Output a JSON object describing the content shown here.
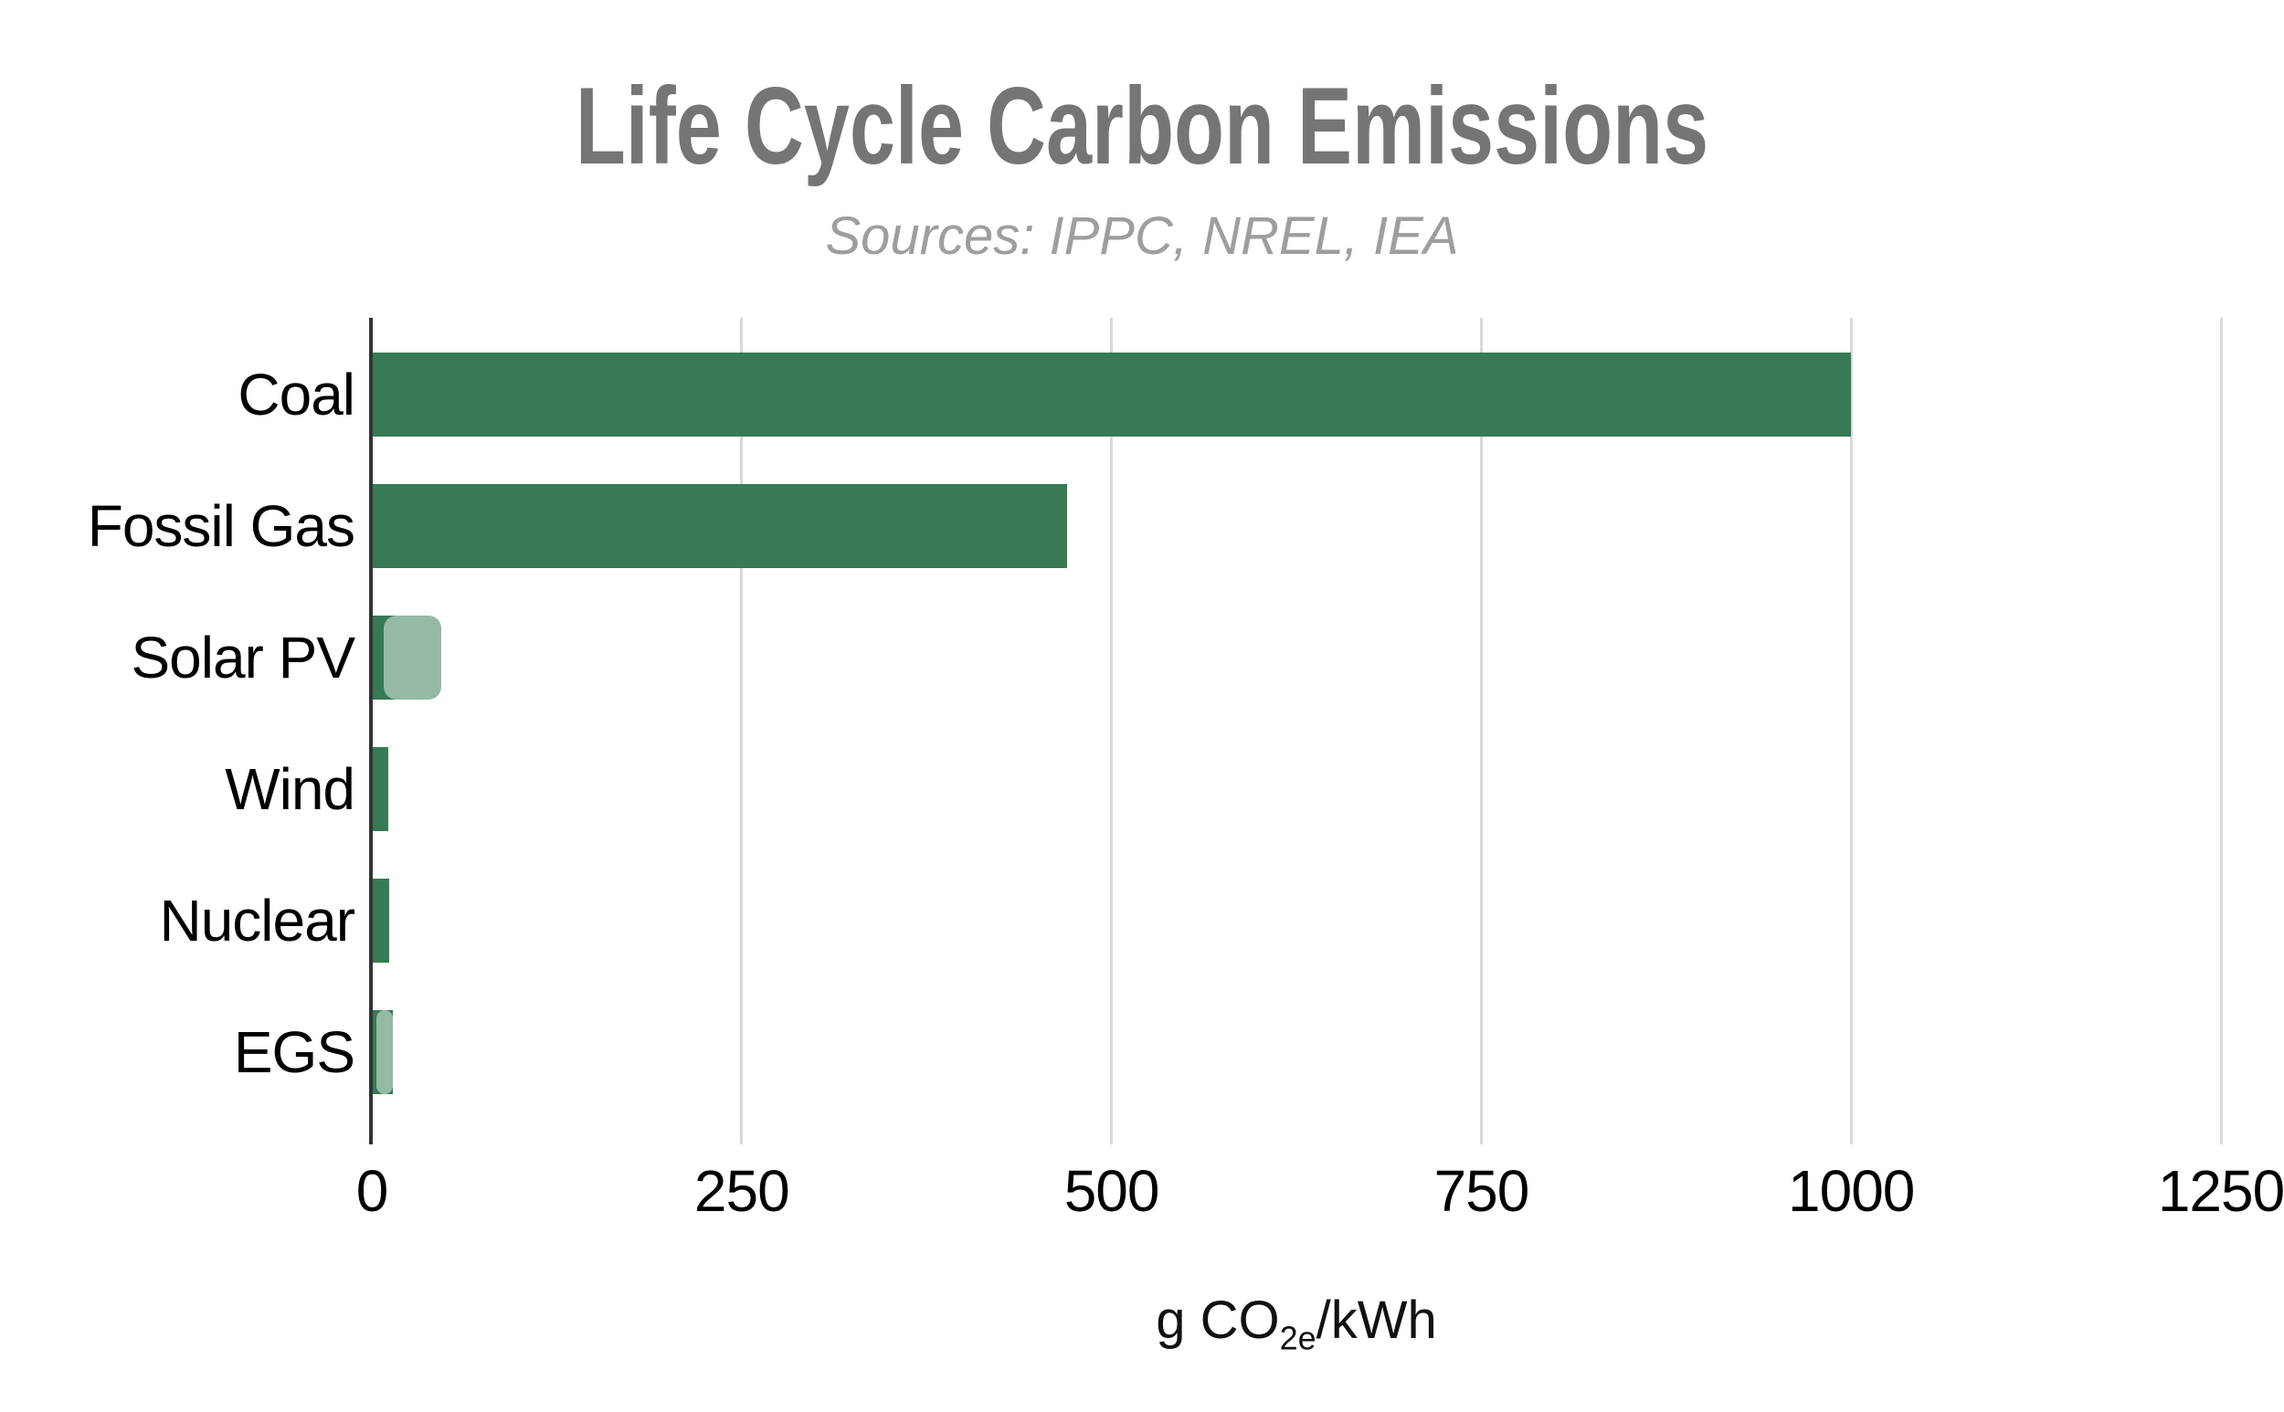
{
  "chart": {
    "title": "Life Cycle Carbon Emissions",
    "subtitle": "Sources: IPPC, NREL, IEA",
    "x_axis_title": {
      "prefix": "g CO",
      "subscript": "2e",
      "suffix": "/kWh"
    },
    "colors": {
      "bar_primary_dark_green": "#377A55",
      "bar_secondary_light_green": "#94BAA5",
      "title_gray": "#757575",
      "subtitle_gray": "#9E9E9E",
      "gridline_gray": "#D9D9D9",
      "axis_line": "#333333",
      "label_black": "#000000"
    }
  },
  "chart_data": {
    "type": "bar",
    "orientation": "horizontal",
    "title": "Life Cycle Carbon Emissions",
    "subtitle": "Sources: IPPC, NREL, IEA",
    "xlabel": "g CO₂ₑ/kWh",
    "ylabel": "",
    "xlim": [
      0,
      1250
    ],
    "x_ticks": [
      0,
      250,
      500,
      750,
      1000,
      1250
    ],
    "grid": "vertical gridlines at each x tick, light gray, behind bars",
    "legend": "none",
    "categories": [
      "Coal",
      "Fossil Gas",
      "Solar PV",
      "Wind",
      "Nuclear",
      "EGS"
    ],
    "series": [
      {
        "name": "primary (dark green, square-cornered segment)",
        "color": "#377A55",
        "values": [
          1000,
          470,
          8,
          11,
          12,
          3
        ]
      },
      {
        "name": "secondary (light green, rounded-corner segment extending past primary)",
        "color": "#94BAA5",
        "values": [
          null,
          null,
          47,
          null,
          null,
          14
        ]
      }
    ],
    "bar_total_values": [
      1000,
      470,
      47,
      11,
      12,
      14
    ],
    "units": "g CO2e per kWh"
  }
}
